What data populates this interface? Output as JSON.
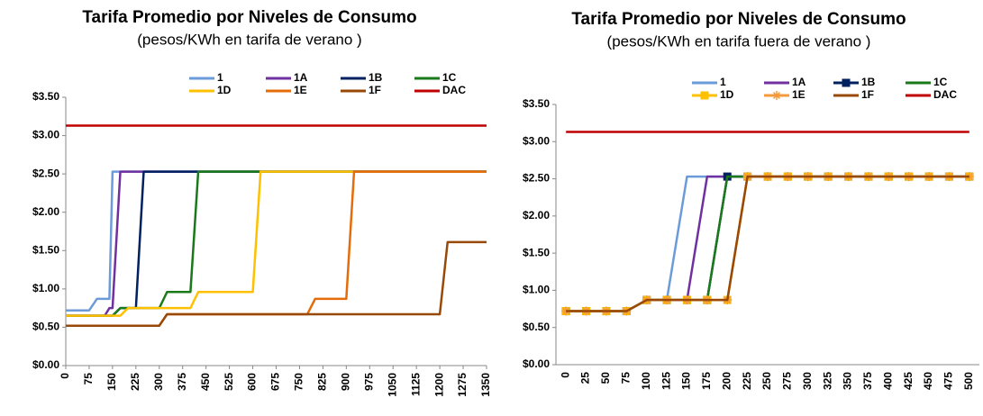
{
  "chart_data": [
    {
      "type": "line",
      "title": "Tarifa Promedio por Niveles de Consumo",
      "subtitle": "(pesos/KWh en tarifa de verano )",
      "legend": "top",
      "x": [
        0,
        75,
        100,
        125,
        140,
        150,
        175,
        200,
        225,
        250,
        300,
        325,
        400,
        425,
        600,
        625,
        775,
        800,
        900,
        925,
        1200,
        1225,
        1350
      ],
      "xlim": [
        0,
        1350
      ],
      "xticks": [
        0,
        75,
        150,
        225,
        300,
        375,
        450,
        525,
        600,
        675,
        750,
        825,
        900,
        975,
        1050,
        1125,
        1200,
        1275,
        1350
      ],
      "ylim": [
        0,
        3.5
      ],
      "yticks": [
        {
          "value": 0,
          "label": "$0.00"
        },
        {
          "value": 0.5,
          "label": "$0.50"
        },
        {
          "value": 1,
          "label": "$1.00"
        },
        {
          "value": 1.5,
          "label": "$1.50"
        },
        {
          "value": 2,
          "label": "$2.00"
        },
        {
          "value": 2.5,
          "label": "$2.50"
        },
        {
          "value": 3,
          "label": "$3.00"
        },
        {
          "value": 3.5,
          "label": "$3.50"
        }
      ],
      "series": [
        {
          "name": "1",
          "color": "#6b9bd8",
          "values": [
            0.72,
            0.72,
            0.87,
            0.87,
            0.87,
            2.53,
            2.53,
            2.53,
            2.53,
            2.53,
            2.53,
            2.53,
            2.53,
            2.53,
            2.53,
            2.53,
            2.53,
            2.53,
            2.53,
            2.53,
            2.53,
            2.53,
            2.53
          ]
        },
        {
          "name": "1A",
          "color": "#7030a0",
          "values": [
            0.65,
            0.65,
            0.65,
            0.65,
            0.75,
            0.75,
            2.53,
            2.53,
            2.53,
            2.53,
            2.53,
            2.53,
            2.53,
            2.53,
            2.53,
            2.53,
            2.53,
            2.53,
            2.53,
            2.53,
            2.53,
            2.53,
            2.53
          ]
        },
        {
          "name": "1B",
          "color": "#002060",
          "values": [
            0.65,
            0.65,
            0.65,
            0.65,
            0.65,
            0.65,
            0.75,
            0.75,
            0.75,
            2.53,
            2.53,
            2.53,
            2.53,
            2.53,
            2.53,
            2.53,
            2.53,
            2.53,
            2.53,
            2.53,
            2.53,
            2.53,
            2.53
          ]
        },
        {
          "name": "1C",
          "color": "#1a7a1a",
          "values": [
            0.65,
            0.65,
            0.65,
            0.65,
            0.65,
            0.65,
            0.75,
            0.75,
            0.75,
            0.75,
            0.75,
            0.96,
            0.96,
            2.53,
            2.53,
            2.53,
            2.53,
            2.53,
            2.53,
            2.53,
            2.53,
            2.53,
            2.53
          ]
        },
        {
          "name": "1D",
          "color": "#ffc000",
          "values": [
            0.65,
            0.65,
            0.65,
            0.65,
            0.65,
            0.65,
            0.65,
            0.75,
            0.75,
            0.75,
            0.75,
            0.75,
            0.75,
            0.96,
            0.96,
            2.53,
            2.53,
            2.53,
            2.53,
            2.53,
            2.53,
            2.53,
            2.53
          ]
        },
        {
          "name": "1E",
          "color": "#e46c0a",
          "values": [
            0.52,
            0.52,
            0.52,
            0.52,
            0.52,
            0.52,
            0.52,
            0.52,
            0.52,
            0.52,
            0.52,
            0.67,
            0.67,
            0.67,
            0.67,
            0.67,
            0.67,
            0.87,
            0.87,
            2.53,
            2.53,
            2.53,
            2.53
          ]
        },
        {
          "name": "1F",
          "color": "#984807",
          "values": [
            0.52,
            0.52,
            0.52,
            0.52,
            0.52,
            0.52,
            0.52,
            0.52,
            0.52,
            0.52,
            0.52,
            0.67,
            0.67,
            0.67,
            0.67,
            0.67,
            0.67,
            0.67,
            0.67,
            0.67,
            0.67,
            1.61,
            1.61
          ]
        },
        {
          "name": "DAC",
          "color": "#c00000",
          "values": [
            3.13,
            3.13,
            3.13,
            3.13,
            3.13,
            3.13,
            3.13,
            3.13,
            3.13,
            3.13,
            3.13,
            3.13,
            3.13,
            3.13,
            3.13,
            3.13,
            3.13,
            3.13,
            3.13,
            3.13,
            3.13,
            3.13,
            3.13
          ]
        }
      ]
    },
    {
      "type": "line",
      "title": "Tarifa Promedio por Niveles de Consumo",
      "subtitle": "(pesos/KWh en tarifa fuera de verano )",
      "legend": "top",
      "categories": [
        "0",
        "25",
        "50",
        "75",
        "100",
        "125",
        "150",
        "175",
        "200",
        "225",
        "250",
        "275",
        "300",
        "325",
        "350",
        "375",
        "400",
        "425",
        "450",
        "475",
        "500"
      ],
      "ylim": [
        0,
        3.5
      ],
      "yticks": [
        {
          "value": 0,
          "label": "$0.00"
        },
        {
          "value": 0.5,
          "label": "$0.50"
        },
        {
          "value": 1,
          "label": "$1.00"
        },
        {
          "value": 1.5,
          "label": "$1.50"
        },
        {
          "value": 2,
          "label": "$2.00"
        },
        {
          "value": 2.5,
          "label": "$2.50"
        },
        {
          "value": 3,
          "label": "$3.00"
        },
        {
          "value": 3.5,
          "label": "$3.50"
        }
      ],
      "series": [
        {
          "name": "1",
          "color": "#6b9bd8",
          "values": [
            0.72,
            0.72,
            0.72,
            0.72,
            0.87,
            0.87,
            2.53,
            2.53,
            2.53,
            2.53,
            2.53,
            2.53,
            2.53,
            2.53,
            2.53,
            2.53,
            2.53,
            2.53,
            2.53,
            2.53,
            2.53
          ]
        },
        {
          "name": "1A",
          "color": "#7030a0",
          "values": [
            0.72,
            0.72,
            0.72,
            0.72,
            0.87,
            0.87,
            0.87,
            2.53,
            2.53,
            2.53,
            2.53,
            2.53,
            2.53,
            2.53,
            2.53,
            2.53,
            2.53,
            2.53,
            2.53,
            2.53,
            2.53
          ]
        },
        {
          "name": "1B",
          "color": "#002060",
          "marker": "square",
          "values": [
            0.72,
            0.72,
            0.72,
            0.72,
            0.87,
            0.87,
            0.87,
            0.87,
            2.53,
            2.53,
            2.53,
            2.53,
            2.53,
            2.53,
            2.53,
            2.53,
            2.53,
            2.53,
            2.53,
            2.53,
            2.53
          ]
        },
        {
          "name": "1C",
          "color": "#1a7a1a",
          "values": [
            0.72,
            0.72,
            0.72,
            0.72,
            0.87,
            0.87,
            0.87,
            0.87,
            2.53,
            2.53,
            2.53,
            2.53,
            2.53,
            2.53,
            2.53,
            2.53,
            2.53,
            2.53,
            2.53,
            2.53,
            2.53
          ]
        },
        {
          "name": "1D",
          "color": "#ffc000",
          "marker": "square",
          "values": [
            0.72,
            0.72,
            0.72,
            0.72,
            0.87,
            0.87,
            0.87,
            0.87,
            0.87,
            2.53,
            2.53,
            2.53,
            2.53,
            2.53,
            2.53,
            2.53,
            2.53,
            2.53,
            2.53,
            2.53,
            2.53
          ]
        },
        {
          "name": "1E",
          "color": "#f59a3c",
          "marker": "star",
          "values": [
            0.72,
            0.72,
            0.72,
            0.72,
            0.87,
            0.87,
            0.87,
            0.87,
            0.87,
            2.53,
            2.53,
            2.53,
            2.53,
            2.53,
            2.53,
            2.53,
            2.53,
            2.53,
            2.53,
            2.53,
            2.53
          ]
        },
        {
          "name": "1F",
          "color": "#984807",
          "values": [
            0.72,
            0.72,
            0.72,
            0.72,
            0.87,
            0.87,
            0.87,
            0.87,
            0.87,
            2.53,
            2.53,
            2.53,
            2.53,
            2.53,
            2.53,
            2.53,
            2.53,
            2.53,
            2.53,
            2.53,
            2.53
          ]
        },
        {
          "name": "DAC",
          "color": "#c00000",
          "values": [
            3.13,
            3.13,
            3.13,
            3.13,
            3.13,
            3.13,
            3.13,
            3.13,
            3.13,
            3.13,
            3.13,
            3.13,
            3.13,
            3.13,
            3.13,
            3.13,
            3.13,
            3.13,
            3.13,
            3.13,
            3.13
          ]
        }
      ]
    }
  ]
}
